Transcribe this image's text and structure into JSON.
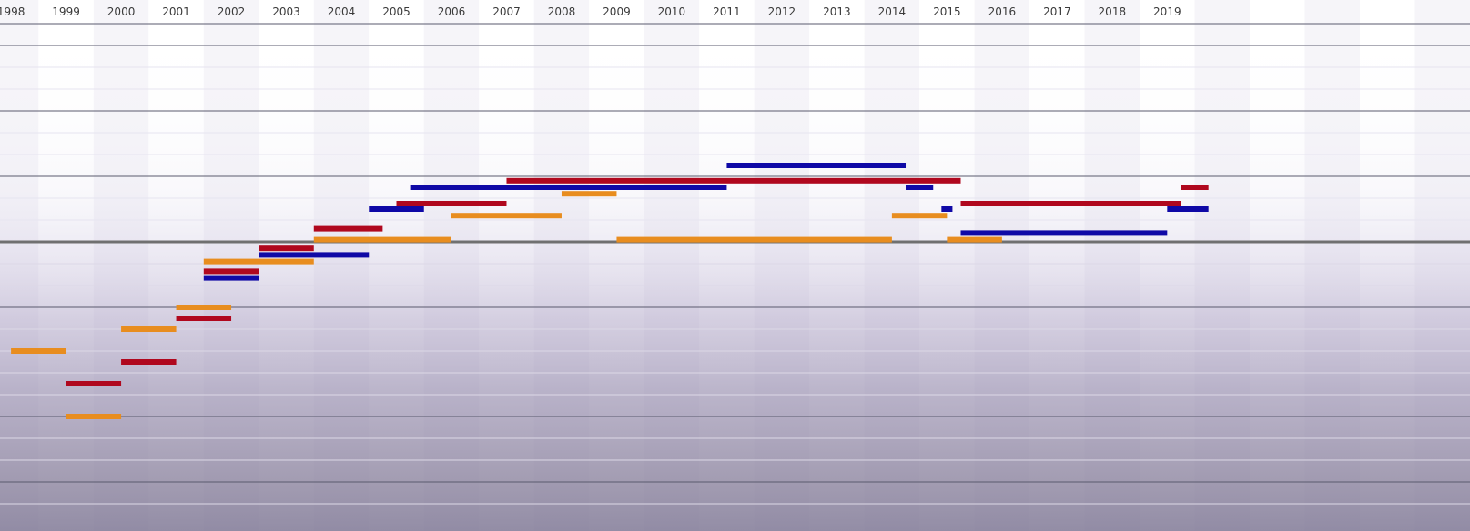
{
  "chart_data": {
    "type": "timeline",
    "x_ticks": [
      1998,
      1999,
      2000,
      2001,
      2002,
      2003,
      2004,
      2005,
      2006,
      2007,
      2008,
      2009,
      2010,
      2011,
      2012,
      2013,
      2014,
      2015,
      2016,
      2017,
      2018,
      2019
    ],
    "xlim": [
      1997.8,
      2024.5
    ],
    "ylim": [
      0,
      23
    ],
    "colors": {
      "red": "#b0081e",
      "blue": "#0f09a6",
      "orange": "#e88d1f",
      "major_line": "#5a5a6e",
      "minor_line": "#e6e4f0",
      "thick_line": "#707070"
    },
    "major_y_lines": [
      1,
      2,
      5,
      8,
      11,
      14,
      19,
      22
    ],
    "minor_y_lines": [
      3,
      4,
      6,
      7,
      9,
      10,
      12,
      13,
      15,
      16,
      17,
      18,
      20,
      21,
      23
    ],
    "bars": [
      {
        "color": "blue",
        "start": 2011.0,
        "end": 2014.25,
        "row": 7.5
      },
      {
        "color": "red",
        "start": 2007.0,
        "end": 2015.25,
        "row": 8.2
      },
      {
        "color": "blue",
        "start": 2005.25,
        "end": 2011.0,
        "row": 8.5
      },
      {
        "color": "blue",
        "start": 2014.25,
        "end": 2014.75,
        "row": 8.5
      },
      {
        "color": "red",
        "start": 2019.25,
        "end": 2019.75,
        "row": 8.5
      },
      {
        "color": "orange",
        "start": 2008.0,
        "end": 2009.0,
        "row": 8.8
      },
      {
        "color": "red",
        "start": 2005.0,
        "end": 2007.0,
        "row": 9.25
      },
      {
        "color": "red",
        "start": 2015.25,
        "end": 2019.25,
        "row": 9.25
      },
      {
        "color": "blue",
        "start": 2004.5,
        "end": 2005.5,
        "row": 9.5
      },
      {
        "color": "blue",
        "start": 2014.9,
        "end": 2015.1,
        "row": 9.5
      },
      {
        "color": "blue",
        "start": 2019.0,
        "end": 2019.75,
        "row": 9.5
      },
      {
        "color": "orange",
        "start": 2006.0,
        "end": 2008.0,
        "row": 9.8
      },
      {
        "color": "orange",
        "start": 2014.0,
        "end": 2015.0,
        "row": 9.8
      },
      {
        "color": "red",
        "start": 2003.5,
        "end": 2004.75,
        "row": 10.4
      },
      {
        "color": "blue",
        "start": 2015.25,
        "end": 2019.0,
        "row": 10.6
      },
      {
        "color": "orange",
        "start": 2003.5,
        "end": 2006.0,
        "row": 10.9
      },
      {
        "color": "orange",
        "start": 2009.0,
        "end": 2014.0,
        "row": 10.9
      },
      {
        "color": "orange",
        "start": 2015.0,
        "end": 2016.0,
        "row": 10.9
      },
      {
        "color": "red",
        "start": 2002.5,
        "end": 2003.5,
        "row": 11.3
      },
      {
        "color": "blue",
        "start": 2002.5,
        "end": 2004.5,
        "row": 11.6
      },
      {
        "color": "orange",
        "start": 2001.5,
        "end": 2003.5,
        "row": 11.9
      },
      {
        "color": "red",
        "start": 2001.5,
        "end": 2002.5,
        "row": 12.35
      },
      {
        "color": "blue",
        "start": 2001.5,
        "end": 2002.5,
        "row": 12.65
      },
      {
        "color": "orange",
        "start": 2001.0,
        "end": 2002.0,
        "row": 14.0
      },
      {
        "color": "red",
        "start": 2001.0,
        "end": 2002.0,
        "row": 14.5
      },
      {
        "color": "orange",
        "start": 2000.0,
        "end": 2001.0,
        "row": 15.0
      },
      {
        "color": "orange",
        "start": 1998.0,
        "end": 1999.0,
        "row": 16.0
      },
      {
        "color": "red",
        "start": 2000.0,
        "end": 2001.0,
        "row": 16.5
      },
      {
        "color": "red",
        "start": 1999.0,
        "end": 2000.0,
        "row": 17.5
      },
      {
        "color": "orange",
        "start": 1999.0,
        "end": 2000.0,
        "row": 19.0
      }
    ]
  }
}
